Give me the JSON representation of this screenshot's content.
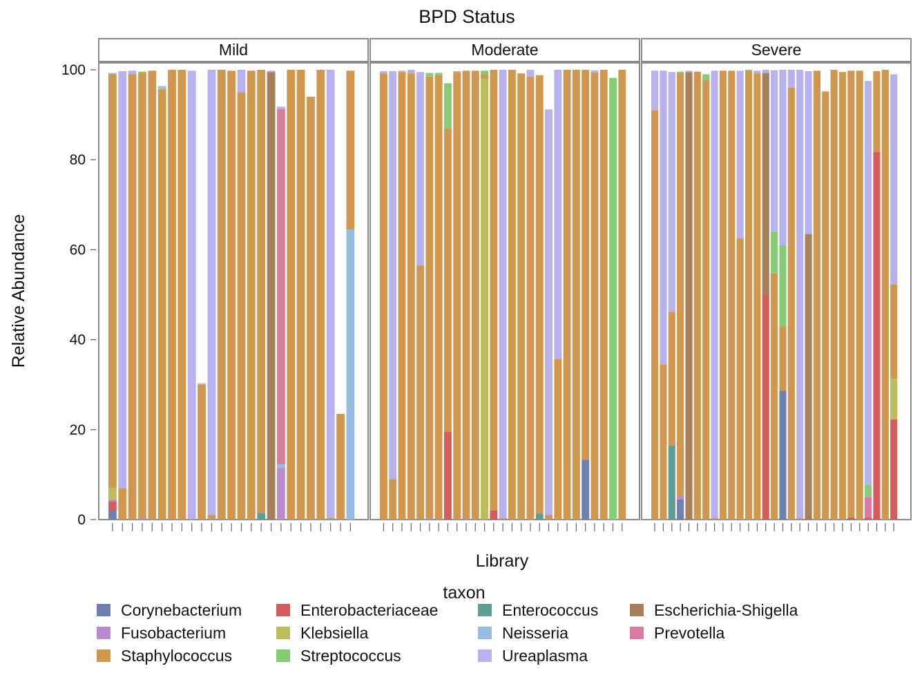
{
  "chart_data": {
    "type": "bar",
    "stacked": true,
    "title": "BPD Status",
    "xlabel": "Library",
    "ylabel": "Relative Abundance",
    "ylim": [
      0,
      100
    ],
    "yticks": [
      "0",
      "20",
      "40",
      "60",
      "80",
      "100"
    ],
    "legend": {
      "title": "taxon",
      "placement": "bottom",
      "entries": [
        {
          "name": "Corynebacterium",
          "color": "#6f7fb0"
        },
        {
          "name": "Enterobacteriaceae",
          "color": "#d45c5c"
        },
        {
          "name": "Enterococcus",
          "color": "#5e9e97"
        },
        {
          "name": "Escherichia-Shigella",
          "color": "#a97f5b"
        },
        {
          "name": "Fusobacterium",
          "color": "#b98ad0"
        },
        {
          "name": "Klebsiella",
          "color": "#bcbd5a"
        },
        {
          "name": "Neisseria",
          "color": "#97bde0"
        },
        {
          "name": "Prevotella",
          "color": "#d97aa2"
        },
        {
          "name": "Staphylococcus",
          "color": "#d0984f"
        },
        {
          "name": "Streptococcus",
          "color": "#86cc74"
        },
        {
          "name": "Ureaplasma",
          "color": "#b7b1ee"
        }
      ]
    },
    "panels": [
      {
        "label": "Mild",
        "bars": [
          {
            "Corynebacterium": 2,
            "Enterobacteriaceae": 2,
            "Klebsiella": 2.5,
            "Fusobacterium": 0.5,
            "Staphylococcus": 92,
            "Ureaplasma": 0.3
          },
          {
            "Staphylococcus": 7,
            "Ureaplasma": 92.7
          },
          {
            "Staphylococcus": 99,
            "Ureaplasma": 0.8
          },
          {
            "Fusobacterium": 0.3,
            "Staphylococcus": 99,
            "Streptococcus": 0.3
          },
          {
            "Staphylococcus": 99.8
          },
          {
            "Staphylococcus": 95.6,
            "Streptococcus": 0.3,
            "Ureaplasma": 0.5
          },
          {
            "Staphylococcus": 100
          },
          {
            "Staphylococcus": 100
          },
          {
            "Staphylococcus": 0.2,
            "Ureaplasma": 99.6
          },
          {
            "Staphylococcus": 30,
            "Ureaplasma": 0.3
          },
          {
            "Staphylococcus": 1,
            "Ureaplasma": 99
          },
          {
            "Staphylococcus": 100
          },
          {
            "Staphylococcus": 99.8
          },
          {
            "Staphylococcus": 95,
            "Ureaplasma": 5
          },
          {
            "Staphylococcus": 99.8
          },
          {
            "Enterococcus": 1.5,
            "Staphylococcus": 98.5
          },
          {
            "Escherichia-Shigella": 99.5,
            "Ureaplasma": 0.3
          },
          {
            "Fusobacterium": 11.5,
            "Prevotella": 79,
            "Ureaplasma": 0.5,
            "Neisseria": 0.8
          },
          {
            "Staphylococcus": 100
          },
          {
            "Staphylococcus": 100
          },
          {
            "Staphylococcus": 94
          },
          {
            "Staphylococcus": 100
          },
          {
            "Staphylococcus": 0.3,
            "Streptococcus": 0.2,
            "Ureaplasma": 99.5
          },
          {
            "Staphylococcus": 23.5
          },
          {
            "Neisseria": 64.5,
            "Staphylococcus": 35.3
          }
        ]
      },
      {
        "label": "Moderate",
        "bars": [
          {
            "Staphylococcus": 99.2,
            "Ureaplasma": 0.5
          },
          {
            "Staphylococcus": 9,
            "Ureaplasma": 90.7
          },
          {
            "Staphylococcus": 99.5,
            "Ureaplasma": 0.3
          },
          {
            "Staphylococcus": 99.2,
            "Ureaplasma": 0.8
          },
          {
            "Staphylococcus": 56.5,
            "Ureaplasma": 43
          },
          {
            "Fusobacterium": 0.3,
            "Staphylococcus": 98.2,
            "Streptococcus": 0.8
          },
          {
            "Staphylococcus": 98.8,
            "Streptococcus": 0.5
          },
          {
            "Enterobacteriaceae": 19.5,
            "Staphylococcus": 67.5,
            "Streptococcus": 10
          },
          {
            "Staphylococcus": 99.5,
            "Ureaplasma": 0.2
          },
          {
            "Fusobacterium": 0.3,
            "Staphylococcus": 99.5
          },
          {
            "Staphylococcus": 99.8
          },
          {
            "Staphylococcus": 1,
            "Klebsiella": 98,
            "Streptococcus": 0.8
          },
          {
            "Enterobacteriaceae": 2,
            "Staphylococcus": 98
          },
          {
            "Staphylococcus": 0.3,
            "Ureaplasma": 99.7
          },
          {
            "Staphylococcus": 100
          },
          {
            "Staphylococcus": 99.2
          },
          {
            "Staphylococcus": 98.5,
            "Ureaplasma": 1.5
          },
          {
            "Enterococcus": 1.3,
            "Staphylococcus": 97.5
          },
          {
            "Staphylococcus": 1,
            "Ureaplasma": 90.2
          },
          {
            "Staphylococcus": 35.7,
            "Ureaplasma": 64.3
          },
          {
            "Staphylococcus": 100
          },
          {
            "Staphylococcus": 100
          },
          {
            "Corynebacterium": 13.3,
            "Staphylococcus": 86.7
          },
          {
            "Staphylococcus": 99.4,
            "Ureaplasma": 0.5
          },
          {
            "Staphylococcus": 100
          },
          {
            "Streptococcus": 98.2
          },
          {
            "Staphylococcus": 100
          }
        ]
      },
      {
        "label": "Severe",
        "bars": [
          {
            "Staphylococcus": 91,
            "Ureaplasma": 8.8
          },
          {
            "Staphylococcus": 34.5,
            "Ureaplasma": 65.3
          },
          {
            "Enterococcus": 16.5,
            "Staphylococcus": 29.7,
            "Ureaplasma": 53.3
          },
          {
            "Corynebacterium": 4.5,
            "Fusobacterium": 0.8,
            "Staphylococcus": 94,
            "Streptococcus": 0.3
          },
          {
            "Escherichia-Shigella": 99.5,
            "Ureaplasma": 0.3
          },
          {
            "Staphylococcus": 99.6
          },
          {
            "Staphylococcus": 97.7,
            "Streptococcus": 1.3
          },
          {
            "Staphylococcus": 0.3,
            "Ureaplasma": 99.5
          },
          {
            "Staphylococcus": 99.8
          },
          {
            "Staphylococcus": 99.8
          },
          {
            "Staphylococcus": 62.5,
            "Ureaplasma": 37.3
          },
          {
            "Staphylococcus": 99.8,
            "Streptococcus": 0.2
          },
          {
            "Staphylococcus": 99.2,
            "Ureaplasma": 0.6
          },
          {
            "Enterobacteriaceae": 50,
            "Escherichia-Shigella": 49.3,
            "Ureaplasma": 0.7
          },
          {
            "Staphylococcus": 54.7,
            "Streptococcus": 9.2,
            "Ureaplasma": 36
          },
          {
            "Corynebacterium": 28.7,
            "Staphylococcus": 14.3,
            "Streptococcus": 18,
            "Ureaplasma": 39
          },
          {
            "Staphylococcus": 96,
            "Ureaplasma": 4
          },
          {
            "Staphylococcus": 0.3,
            "Ureaplasma": 99.7
          },
          {
            "Escherichia-Shigella": 63.5,
            "Ureaplasma": 36.2
          },
          {
            "Staphylococcus": 99.8
          },
          {
            "Staphylococcus": 95.2
          },
          {
            "Staphylococcus": 100
          },
          {
            "Staphylococcus": 99.5
          },
          {
            "Enterobacteriaceae": 0.5,
            "Staphylococcus": 99.3
          },
          {
            "Staphylococcus": 99.8
          },
          {
            "Enterobacteriaceae": 0.5,
            "Prevotella": 4.5,
            "Streptococcus": 2.7,
            "Ureaplasma": 89.8
          },
          {
            "Enterobacteriaceae": 81.7,
            "Staphylococcus": 18
          },
          {
            "Staphylococcus": 100
          },
          {
            "Enterobacteriaceae": 22.3,
            "Klebsiella": 9,
            "Staphylococcus": 21,
            "Ureaplasma": 46.7
          }
        ]
      }
    ]
  }
}
